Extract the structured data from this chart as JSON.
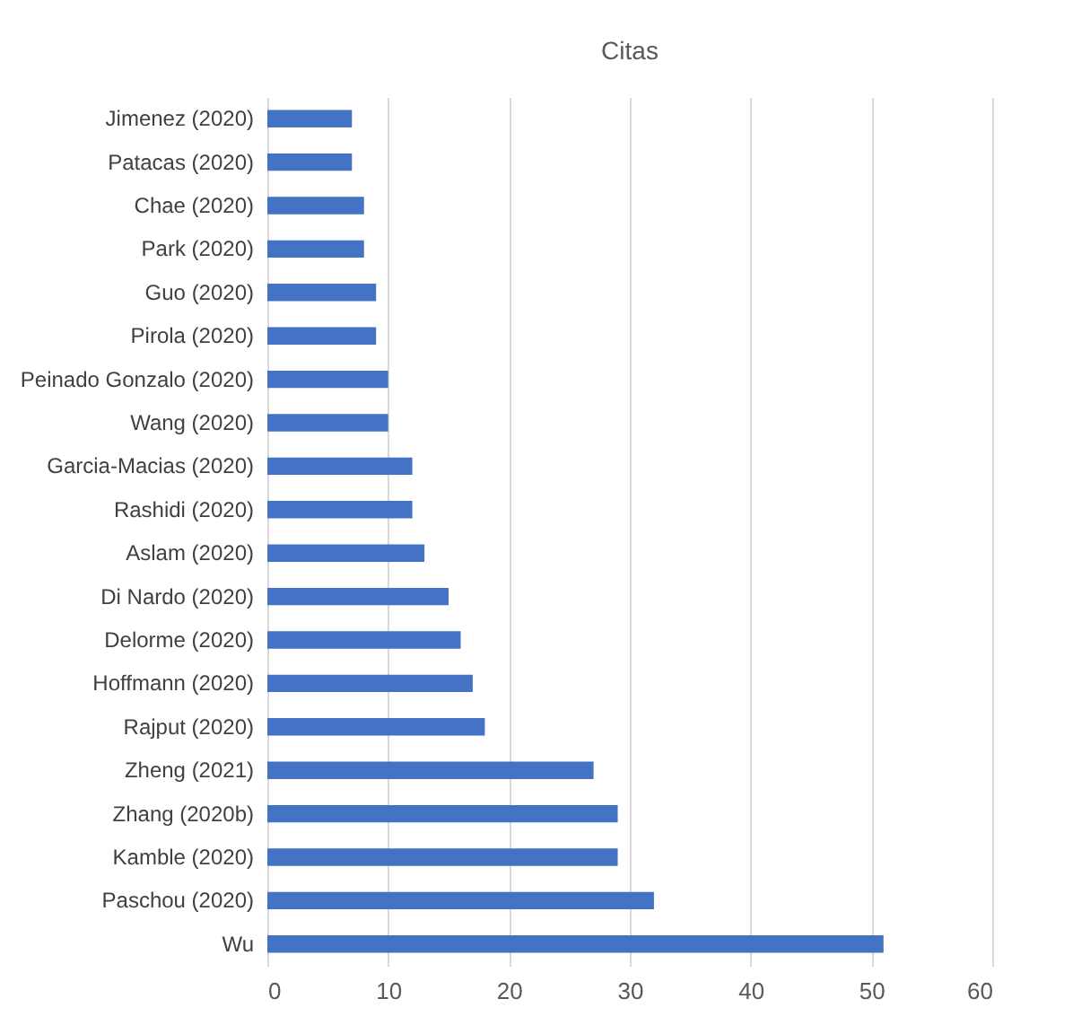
{
  "chart_data": {
    "type": "bar",
    "orientation": "horizontal",
    "title": "Citas",
    "categories": [
      "Jimenez (2020)",
      "Patacas (2020)",
      "Chae (2020)",
      "Park (2020)",
      "Guo (2020)",
      "Pirola (2020)",
      "Peinado Gonzalo (2020)",
      "Wang (2020)",
      "Garcia-Macias (2020)",
      "Rashidi (2020)",
      "Aslam (2020)",
      "Di Nardo (2020)",
      "Delorme (2020)",
      "Hoffmann (2020)",
      "Rajput (2020)",
      "Zheng (2021)",
      "Zhang (2020b)",
      "Kamble (2020)",
      "Paschou (2020)",
      "Wu"
    ],
    "values": [
      7,
      7,
      8,
      8,
      9,
      9,
      10,
      10,
      12,
      12,
      13,
      15,
      16,
      17,
      18,
      27,
      29,
      29,
      32,
      51
    ],
    "color": "#4472c4",
    "xlim": [
      0,
      60
    ],
    "xticks": [
      0,
      10,
      20,
      30,
      40,
      50,
      60
    ],
    "grid": true
  }
}
